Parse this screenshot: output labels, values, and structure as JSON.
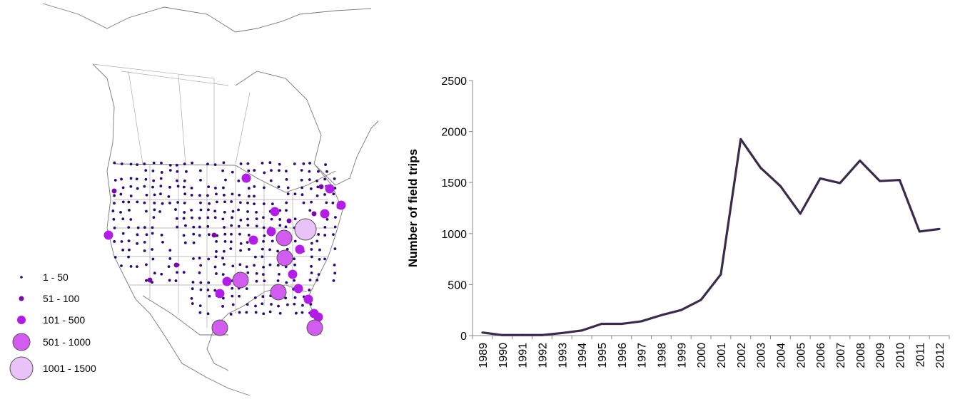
{
  "map": {
    "legend": [
      {
        "label": "1 - 50",
        "color": "#2e0a6e"
      },
      {
        "label": "51 - 100",
        "color": "#7a0aa8"
      },
      {
        "label": "101 - 500",
        "color": "#b21ee6"
      },
      {
        "label": "501 - 1000",
        "color": "#d35cf0"
      },
      {
        "label": "1001 - 1500",
        "color": "#e9c2f7"
      }
    ]
  },
  "chart_data": {
    "type": "line",
    "x": [
      1989,
      1990,
      1991,
      1992,
      1993,
      1994,
      1995,
      1996,
      1997,
      1998,
      1999,
      2000,
      2001,
      2002,
      2003,
      2004,
      2005,
      2006,
      2007,
      2008,
      2009,
      2010,
      2011,
      2012
    ],
    "categories": [
      "1989",
      "1990",
      "1991",
      "1992",
      "1993",
      "1994",
      "1995",
      "1996",
      "1997",
      "1998",
      "1999",
      "2000",
      "2001",
      "2002",
      "2003",
      "2004",
      "2005",
      "2006",
      "2007",
      "2008",
      "2009",
      "2010",
      "2011",
      "2012"
    ],
    "series": [
      {
        "values": [
          30,
          5,
          5,
          5,
          25,
          50,
          115,
          115,
          140,
          200,
          250,
          350,
          600,
          1925,
          1645,
          1465,
          1195,
          1540,
          1495,
          1715,
          1515,
          1525,
          1020,
          1045
        ],
        "color": "#3a2b4a"
      }
    ],
    "title": "",
    "xlabel": "",
    "ylabel": "Number of field trips",
    "ylim": [
      0,
      2500
    ],
    "yticks": [
      "0",
      "500",
      "1000",
      "1500",
      "2000",
      "2500"
    ],
    "grid": false,
    "legend": "none"
  }
}
